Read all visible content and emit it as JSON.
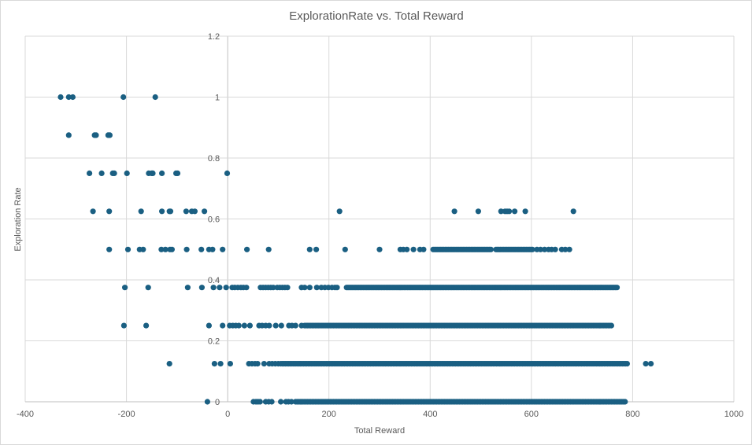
{
  "chart_data": {
    "type": "scatter",
    "title": "ExplorationRate vs. Total Reward",
    "xlabel": "Total Reward",
    "ylabel": "Exploration Rate",
    "xlim": [
      -400,
      1000
    ],
    "ylim": [
      0,
      1.2
    ],
    "x_ticks": [
      "-400",
      "-200",
      "0",
      "200",
      "400",
      "600",
      "800",
      "1000"
    ],
    "y_ticks": [
      "0",
      "0.2",
      "0.4",
      "0.6",
      "0.8",
      "1",
      "1.2"
    ],
    "grid": true,
    "legend": "none",
    "marker_color": "#1a5f82",
    "series": [
      {
        "y": 1,
        "x": [
          -330,
          -314,
          -306,
          -206,
          -143
        ],
        "x_ranges": []
      },
      {
        "y": 0.875,
        "x": [
          -314,
          -263,
          -260,
          -236,
          -233
        ],
        "x_ranges": []
      },
      {
        "y": 0.75,
        "x": [
          -273,
          -249,
          -227,
          -224,
          -199,
          -156,
          -150,
          -148,
          -130,
          -102,
          -99,
          -1
        ],
        "x_ranges": []
      },
      {
        "y": 0.625,
        "x": [
          -266,
          -234,
          -171,
          -130,
          -115,
          -113,
          -82,
          -71,
          -65,
          -46,
          221,
          448,
          495,
          540,
          548,
          552,
          556,
          567,
          588,
          683
        ],
        "x_ranges": []
      },
      {
        "y": 0.5,
        "x": [
          -234,
          -197,
          -174,
          -167,
          -131,
          -123,
          -114,
          -110,
          -81,
          -52,
          -37,
          -30,
          -10,
          38,
          81,
          162,
          175,
          232,
          300,
          341,
          347,
          354,
          367,
          380,
          387,
          611,
          618,
          626,
          634,
          640,
          647,
          660,
          667,
          675
        ],
        "x_ranges": [
          [
            406,
            520
          ],
          [
            530,
            603
          ]
        ]
      },
      {
        "y": 0.375,
        "x": [
          -203,
          -157,
          -79,
          -51,
          -28,
          -16,
          -3,
          9,
          14,
          20,
          26,
          31,
          37,
          65,
          70,
          75,
          80,
          85,
          90,
          98,
          103,
          108,
          113,
          118,
          146,
          152,
          162,
          176,
          185,
          192,
          199,
          206,
          212,
          216
        ],
        "x_ranges": [
          [
            235,
            770
          ]
        ]
      },
      {
        "y": 0.25,
        "x": [
          -205,
          -161,
          -37,
          -10,
          4,
          10,
          16,
          22,
          33,
          44,
          62,
          68,
          75,
          82,
          95,
          106,
          121,
          127,
          134,
          146
        ],
        "x_ranges": [
          [
            152,
            760
          ]
        ]
      },
      {
        "y": 0.125,
        "x": [
          -115,
          -26,
          -14,
          5,
          42,
          48,
          54,
          59,
          72,
          82,
          88,
          94,
          100,
          826,
          836
        ],
        "x_ranges": [
          [
            105,
            790
          ]
        ]
      },
      {
        "y": 0,
        "x": [
          -40,
          51,
          56,
          60,
          64,
          75,
          81,
          87,
          105,
          115,
          120,
          126
        ],
        "x_ranges": [
          [
            134,
            785
          ]
        ]
      }
    ]
  }
}
